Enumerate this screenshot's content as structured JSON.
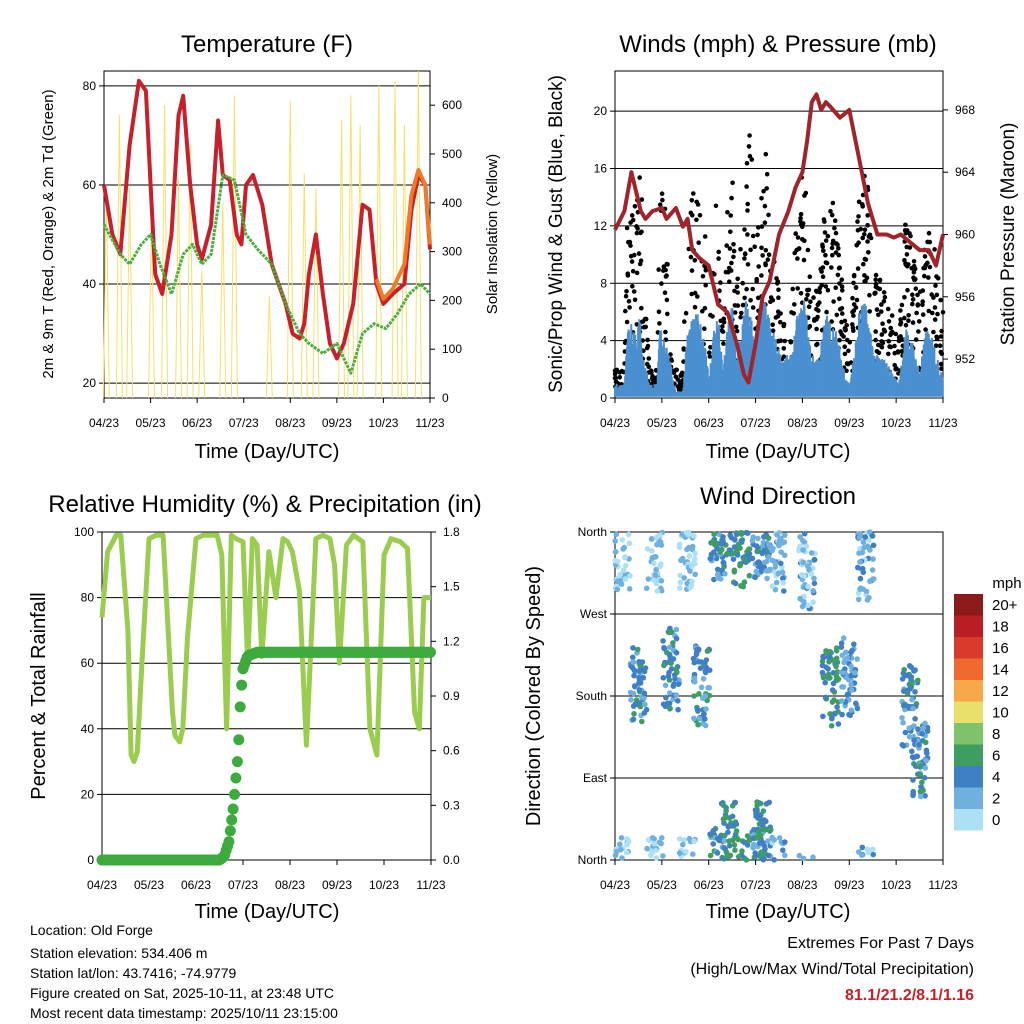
{
  "station": {
    "location_label": "Location: Old Forge",
    "elevation_label": "Station elevation: 534.406 m",
    "latlon_label": "Station lat/lon: 43.7416; -74.9779",
    "created_label": "Figure created on Sat, 2025-10-11, at 23:48 UTC",
    "recent_label": "Most recent data timestamp: 2025/10/11 23:15:00"
  },
  "extremes": {
    "line1": "Extremes For Past 7 Days",
    "line2": "(High/Low/Max Wind/Total Precipitation)",
    "values": "81.1/21.2/8.1/1.16"
  },
  "colors": {
    "temp2m": "#c8202a",
    "temp9m": "#f07a28",
    "dewpoint": "#4cae3c",
    "solar": "#f5e06a",
    "rh": "#9acd4f",
    "precip": "#3daa3d",
    "wind": "#4a8fd0",
    "gust": "#000000",
    "pressure": "#a0242a"
  },
  "chart_data": [
    {
      "type": "line",
      "id": "temperature",
      "title": "Temperature (F)",
      "xlabel": "Time (Day/UTC)",
      "ylabel": "2m & 9m T (Red, Orange) & 2m Td (Green)",
      "y2label": "Solar Insolation (Yellow)",
      "x_ticks": [
        "04/23",
        "05/23",
        "06/23",
        "07/23",
        "08/23",
        "09/23",
        "10/23",
        "11/23"
      ],
      "xlim": [
        0,
        7
      ],
      "ylim": [
        17,
        83
      ],
      "y_ticks": [
        20,
        40,
        60,
        80
      ],
      "y2lim": [
        0,
        670
      ],
      "y2_ticks": [
        0,
        100,
        200,
        300,
        400,
        500,
        600
      ],
      "series": [
        {
          "name": "2m T",
          "x": [
            0,
            0.18,
            0.35,
            0.55,
            0.75,
            0.9,
            1.0,
            1.1,
            1.25,
            1.45,
            1.6,
            1.7,
            1.85,
            2.0,
            2.1,
            2.3,
            2.45,
            2.55,
            2.7,
            2.85,
            2.95,
            3.05,
            3.2,
            3.4,
            3.6,
            3.75,
            3.9,
            4.05,
            4.2,
            4.3,
            4.4,
            4.55,
            4.7,
            4.85,
            5.0,
            5.15,
            5.35,
            5.55,
            5.7,
            5.85,
            6.0,
            6.2,
            6.45,
            6.6,
            6.75,
            6.9,
            7.0
          ],
          "values": [
            60,
            50,
            46,
            68,
            81,
            79,
            60,
            42,
            38,
            50,
            74,
            78,
            60,
            48,
            45,
            52,
            73,
            62,
            61,
            50,
            48,
            60,
            62,
            56,
            44,
            40,
            36,
            30,
            29,
            32,
            42,
            50,
            38,
            28,
            25,
            28,
            36,
            56,
            55,
            40,
            36,
            38,
            40,
            55,
            62,
            60,
            47
          ]
        },
        {
          "name": "9m T",
          "x": [
            5.85,
            6.0,
            6.2,
            6.45,
            6.6,
            6.75,
            6.9,
            7.0
          ],
          "values": [
            41,
            37,
            39,
            44,
            58,
            63,
            60,
            48
          ]
        },
        {
          "name": "2m Td",
          "x": [
            0,
            0.35,
            0.55,
            0.8,
            1.0,
            1.2,
            1.45,
            1.7,
            1.9,
            2.1,
            2.3,
            2.55,
            2.8,
            3.05,
            3.3,
            3.6,
            3.9,
            4.2,
            4.4,
            4.7,
            5.0,
            5.3,
            5.55,
            5.8,
            6.05,
            6.3,
            6.55,
            6.8,
            7.0
          ],
          "values": [
            52,
            46,
            44,
            48,
            50,
            44,
            38,
            46,
            48,
            44,
            46,
            62,
            61,
            50,
            47,
            44,
            36,
            30,
            28,
            26,
            28,
            22,
            30,
            32,
            31,
            34,
            38,
            40,
            38
          ]
        },
        {
          "name": "Solar Insolation",
          "axis": "y2",
          "peaks_x": [
            0.05,
            0.33,
            0.55,
            1.02,
            1.3,
            1.6,
            1.85,
            2.1,
            2.55,
            2.8,
            3.55,
            4.0,
            4.3,
            4.55,
            5.1,
            5.3,
            5.5,
            5.9,
            6.25,
            6.45,
            6.75
          ],
          "peaks": [
            420,
            580,
            430,
            380,
            600,
            450,
            520,
            260,
            400,
            620,
            210,
            610,
            460,
            430,
            570,
            620,
            560,
            640,
            650,
            560,
            670
          ]
        }
      ]
    },
    {
      "type": "scatter",
      "id": "winds",
      "title": "Winds (mph) & Pressure (mb)",
      "xlabel": "Time (Day/UTC)",
      "ylabel": "Sonic/Prop Wind & Gust (Blue, Black)",
      "y2label": "Station Pressure (Maroon)",
      "x_ticks": [
        "04/23",
        "05/23",
        "06/23",
        "07/23",
        "08/23",
        "09/23",
        "10/23",
        "11/23"
      ],
      "xlim": [
        0,
        7
      ],
      "ylim": [
        0,
        22.8
      ],
      "y_ticks": [
        0,
        4,
        8,
        12,
        16,
        20
      ],
      "y2lim": [
        949.5,
        970.5
      ],
      "y2_ticks": [
        952,
        956,
        960,
        964,
        968
      ],
      "series": [
        {
          "name": "Gust",
          "envelope_x": [
            0,
            0.2,
            0.25,
            0.35,
            0.45,
            0.55,
            0.6,
            0.75,
            0.8,
            0.9,
            0.95,
            1.05,
            1.15,
            1.3,
            1.45,
            1.55,
            1.75,
            1.95,
            2.0,
            2.1,
            2.2,
            2.3,
            2.4,
            2.5,
            2.6,
            2.7,
            2.8,
            2.9,
            3.0,
            3.1,
            3.2,
            3.35,
            3.55,
            3.75,
            3.9,
            4.05,
            4.2,
            4.35,
            4.5,
            4.7,
            4.9,
            5.0,
            5.1,
            5.2,
            5.3,
            5.4,
            5.55,
            5.7,
            5.9,
            6.05,
            6.2,
            6.35,
            6.5,
            6.65,
            6.8,
            6.95,
            7.0
          ],
          "envelope_max": [
            2,
            2,
            13,
            15,
            14,
            19,
            9,
            2,
            2,
            2,
            14,
            15,
            8,
            2,
            2,
            14,
            15,
            11,
            4,
            13,
            15,
            5,
            14,
            16,
            8,
            13,
            17,
            19,
            9,
            16,
            18,
            11,
            7,
            6,
            15,
            16,
            7,
            8,
            15,
            14,
            6,
            4,
            9,
            14,
            16,
            15,
            9,
            8,
            6,
            4,
            13,
            11,
            7,
            12,
            11,
            7,
            6
          ]
        },
        {
          "name": "Wind",
          "envelope_max": [
            1,
            1,
            5,
            6,
            5,
            6,
            3,
            1,
            1,
            1,
            5,
            5,
            3,
            0.5,
            0.5,
            5,
            6,
            4,
            1,
            5,
            6,
            2,
            5,
            7,
            3,
            5,
            7,
            6,
            4,
            6,
            7,
            5,
            3,
            3,
            6,
            7,
            3,
            3,
            6,
            5,
            2,
            1,
            3,
            6,
            7,
            6,
            3,
            3,
            2,
            1,
            5,
            4,
            2,
            5,
            4,
            2,
            2
          ]
        },
        {
          "name": "Pressure",
          "axis": "y2",
          "x": [
            0,
            0.2,
            0.35,
            0.55,
            0.65,
            0.8,
            1.0,
            1.1,
            1.3,
            1.45,
            1.55,
            1.65,
            1.8,
            2.0,
            2.2,
            2.4,
            2.6,
            2.75,
            2.85,
            3.0,
            3.15,
            3.3,
            3.5,
            3.7,
            3.85,
            4.0,
            4.1,
            4.2,
            4.3,
            4.4,
            4.5,
            4.6,
            4.8,
            5.0,
            5.2,
            5.4,
            5.6,
            5.8,
            5.95,
            6.1,
            6.3,
            6.5,
            6.7,
            6.85,
            7.0
          ],
          "values": [
            960.3,
            961.5,
            964,
            961.5,
            961,
            961.5,
            961.7,
            961,
            961.7,
            960.5,
            961,
            959,
            958.5,
            958,
            955.5,
            955,
            953,
            951,
            950.5,
            953,
            956,
            957,
            960,
            961.5,
            963,
            964,
            966,
            968.5,
            969,
            968,
            968.5,
            968.2,
            967.5,
            968,
            965,
            962,
            960,
            960,
            959.8,
            960,
            959.5,
            959,
            959,
            958,
            960
          ]
        }
      ]
    },
    {
      "type": "line",
      "id": "humidity",
      "title": "Relative Humidity (%) & Precipitation (in)",
      "xlabel": "Time (Day/UTC)",
      "ylabel": "Percent & Total Rainfall",
      "x_ticks": [
        "04/23",
        "05/23",
        "06/23",
        "07/23",
        "08/23",
        "09/23",
        "10/23",
        "11/23"
      ],
      "xlim": [
        0,
        7
      ],
      "ylim": [
        0,
        100
      ],
      "y_ticks": [
        0,
        20,
        40,
        60,
        80,
        100
      ],
      "y2lim": [
        0,
        1.8
      ],
      "y2_ticks": [
        "0.0",
        "0.3",
        "0.6",
        "0.9",
        "1.2",
        "1.5",
        "1.8"
      ],
      "series": [
        {
          "name": "Relative Humidity",
          "x": [
            0,
            0.12,
            0.3,
            0.4,
            0.55,
            0.62,
            0.68,
            0.75,
            0.85,
            1.0,
            1.15,
            1.3,
            1.5,
            1.55,
            1.65,
            1.72,
            1.82,
            2.0,
            2.15,
            2.3,
            2.45,
            2.55,
            2.65,
            2.75,
            2.85,
            3.0,
            3.1,
            3.2,
            3.3,
            3.4,
            3.55,
            3.7,
            3.85,
            3.95,
            4.05,
            4.2,
            4.35,
            4.55,
            4.7,
            4.85,
            4.95,
            5.05,
            5.2,
            5.35,
            5.55,
            5.7,
            5.85,
            6.0,
            6.15,
            6.35,
            6.5,
            6.65,
            6.75,
            6.85,
            7.0
          ],
          "values": [
            74,
            94,
            99,
            99,
            70,
            32,
            30,
            33,
            60,
            98,
            99,
            99,
            45,
            38,
            36,
            40,
            68,
            98,
            99,
            99,
            99,
            93,
            40,
            99,
            98,
            97,
            60,
            98,
            96,
            62,
            94,
            80,
            98,
            97,
            94,
            82,
            35,
            98,
            99,
            98,
            90,
            60,
            96,
            99,
            97,
            40,
            32,
            93,
            98,
            97,
            95,
            45,
            40,
            80,
            80
          ]
        },
        {
          "name": "Total Precipitation",
          "axis": "y2",
          "x": [
            0,
            2.5,
            2.6,
            2.7,
            2.8,
            2.9,
            2.95,
            3.0,
            3.1,
            3.3,
            3.6,
            4.0,
            5.0,
            6.0,
            7.0
          ],
          "values": [
            0,
            0,
            0.02,
            0.1,
            0.3,
            0.6,
            0.9,
            1.05,
            1.12,
            1.14,
            1.14,
            1.14,
            1.14,
            1.14,
            1.14
          ]
        }
      ]
    },
    {
      "type": "scatter",
      "id": "direction",
      "title": "Wind Direction",
      "xlabel": "Time (Day/UTC)",
      "ylabel": "Direction (Colored By Speed)",
      "x_ticks": [
        "04/23",
        "05/23",
        "06/23",
        "07/23",
        "08/23",
        "09/23",
        "10/23",
        "11/23"
      ],
      "xlim": [
        0,
        7
      ],
      "ylim": [
        0,
        360
      ],
      "y_ticks": [
        "North",
        "East",
        "South",
        "West",
        "North"
      ],
      "y_tick_values": [
        0,
        90,
        180,
        270,
        360
      ],
      "legend_title": "mph",
      "legend_labels": [
        "20+",
        "18",
        "16",
        "14",
        "12",
        "10",
        "8",
        "6",
        "4",
        "2",
        "0"
      ],
      "legend_colors": [
        "#8b1a1a",
        "#b81e24",
        "#d93a2c",
        "#ee6a2e",
        "#f7a94a",
        "#e8e06a",
        "#7cc36a",
        "#3e9e62",
        "#3f7fc4",
        "#6fb0de",
        "#ace0f5"
      ],
      "clusters": [
        {
          "x": 0.15,
          "dir": 340,
          "speed": 1
        },
        {
          "x": 0.5,
          "dir": 190,
          "speed": 4
        },
        {
          "x": 0.85,
          "dir": 340,
          "speed": 1
        },
        {
          "x": 1.2,
          "dir": 210,
          "speed": 4
        },
        {
          "x": 1.55,
          "dir": 340,
          "speed": 1
        },
        {
          "x": 1.85,
          "dir": 190,
          "speed": 4
        },
        {
          "x": 2.2,
          "dir": 350,
          "speed": 4
        },
        {
          "x": 2.45,
          "dir": 20,
          "speed": 5
        },
        {
          "x": 2.7,
          "dir": 345,
          "speed": 5
        },
        {
          "x": 3.1,
          "dir": 350,
          "speed": 3
        },
        {
          "x": 3.15,
          "dir": 20,
          "speed": 5
        },
        {
          "x": 3.45,
          "dir": 340,
          "speed": 2
        },
        {
          "x": 4.1,
          "dir": 320,
          "speed": 2
        },
        {
          "x": 4.6,
          "dir": 190,
          "speed": 5
        },
        {
          "x": 5.0,
          "dir": 200,
          "speed": 3
        },
        {
          "x": 5.35,
          "dir": 330,
          "speed": 2
        },
        {
          "x": 6.3,
          "dir": 170,
          "speed": 4
        },
        {
          "x": 6.5,
          "dir": 110,
          "speed": 4
        }
      ]
    }
  ]
}
